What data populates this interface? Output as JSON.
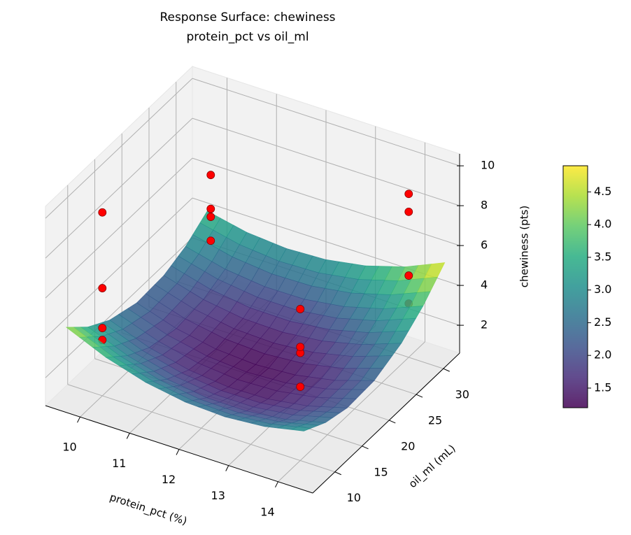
{
  "chart_data": {
    "type": "surface3d",
    "title": "Response Surface: chewiness",
    "subtitle": "protein_pct vs oil_ml",
    "xlabel": "protein_pct (%)",
    "ylabel": "oil_ml (mL)",
    "zlabel": "chewiness (pts)",
    "xlim": [
      9.3,
      14.7
    ],
    "ylim": [
      5.9,
      33
    ],
    "zlim": [
      0.6,
      10.6
    ],
    "xticks": [
      10,
      11,
      12,
      13,
      14
    ],
    "yticks": [
      10,
      15,
      20,
      25,
      30
    ],
    "zticks": [
      2,
      4,
      6,
      8,
      10
    ],
    "surface": {
      "x": [
        9.6,
        10.4,
        11.2,
        12,
        12.8,
        13.6,
        14.4
      ],
      "y": [
        7,
        11,
        15,
        20,
        25,
        29,
        33
      ],
      "z": [
        [
          4.49,
          3.63,
          3.03,
          2.69,
          2.6,
          2.76,
          3.18
        ],
        [
          3.47,
          2.68,
          2.15,
          1.87,
          1.85,
          2.08,
          2.57
        ],
        [
          2.78,
          2.05,
          1.58,
          1.37,
          1.42,
          1.72,
          2.27
        ],
        [
          2.35,
          1.71,
          1.33,
          1.2,
          1.33,
          1.71,
          2.35
        ],
        [
          2.43,
          1.87,
          1.57,
          1.53,
          1.74,
          2.21,
          2.93
        ],
        [
          2.85,
          2.36,
          2.13,
          2.15,
          2.43,
          2.97,
          3.76
        ],
        [
          3.59,
          3.17,
          3.01,
          3.1,
          3.44,
          4.04,
          4.9
        ]
      ]
    },
    "points": {
      "color": "#ff0000",
      "x": [
        10,
        10,
        10,
        10,
        10,
        10,
        10,
        10,
        14,
        14,
        14,
        14,
        14,
        14,
        14,
        14
      ],
      "y": [
        10,
        10,
        10,
        10,
        30,
        30,
        30,
        30,
        10,
        10,
        10,
        10,
        30,
        30,
        30,
        30
      ],
      "z": [
        9.8,
        6.0,
        4.0,
        3.4,
        6.5,
        4.8,
        4.4,
        3.2,
        8.2,
        6.3,
        6.0,
        4.3,
        8.8,
        7.9,
        4.7,
        3.3
      ]
    },
    "colorbar": {
      "colormap": "viridis",
      "lim": [
        1.2,
        4.9
      ],
      "ticks": [
        1.5,
        2.0,
        2.5,
        3.0,
        3.5,
        4.0,
        4.5
      ]
    }
  }
}
